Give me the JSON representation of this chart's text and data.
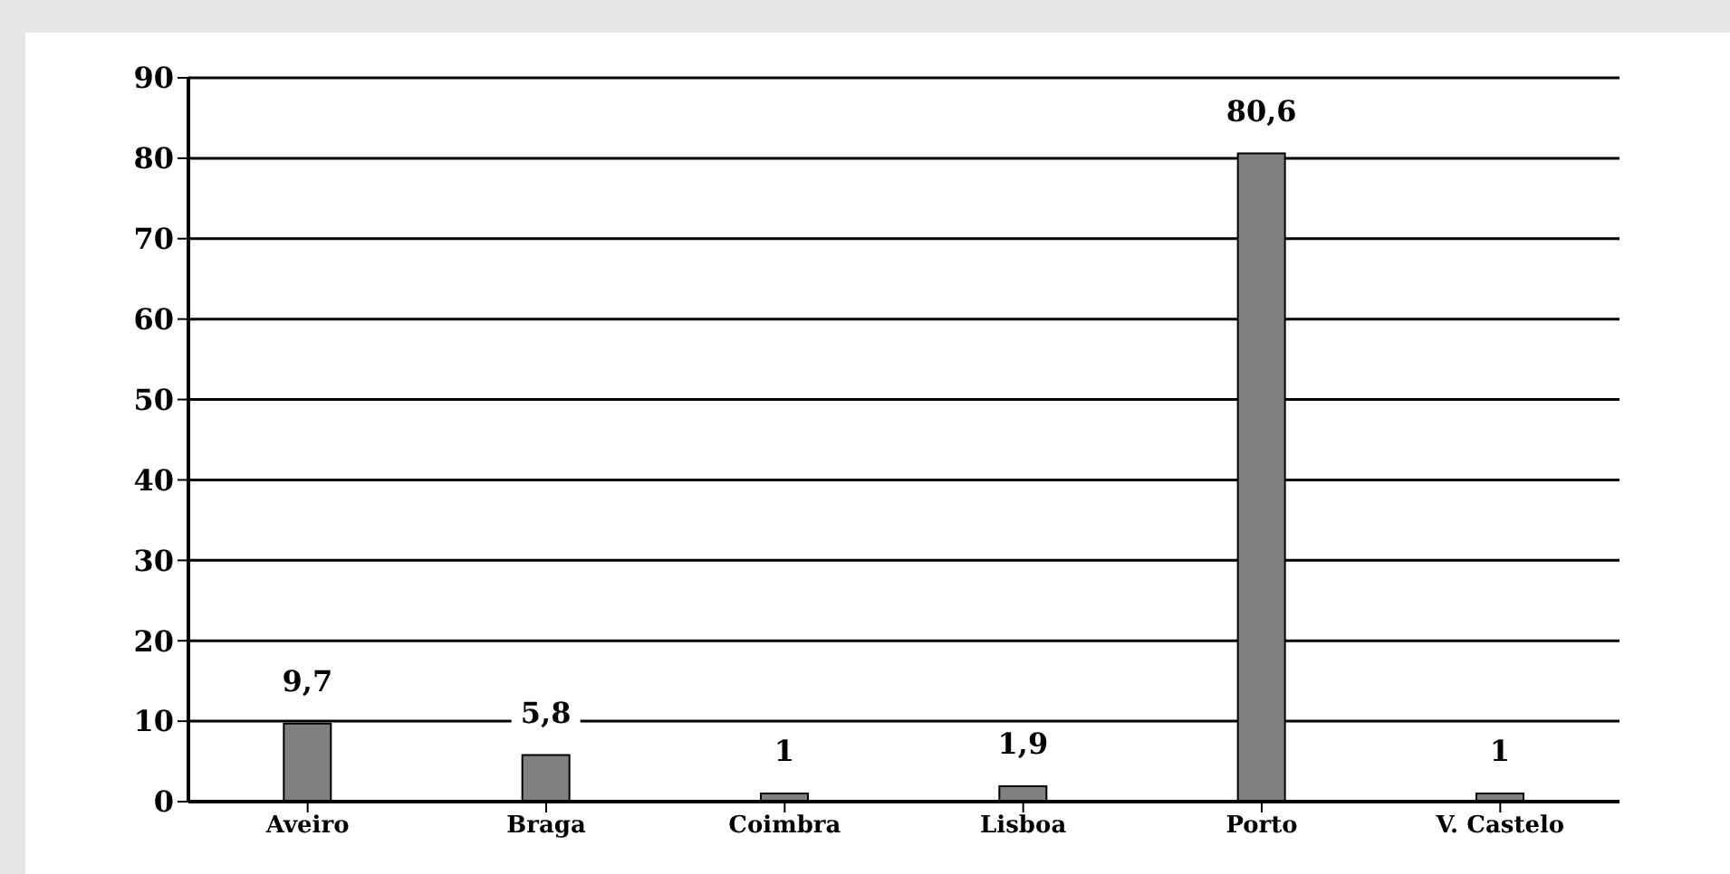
{
  "chart_data": {
    "type": "bar",
    "categories": [
      "Aveiro",
      "Braga",
      "Coimbra",
      "Lisboa",
      "Porto",
      "V. Castelo"
    ],
    "values": [
      9.7,
      5.8,
      1,
      1.9,
      80.6,
      1
    ],
    "value_labels": [
      "9,7",
      "5,8",
      "1",
      "1,9",
      "80,6",
      "1"
    ],
    "color": "#808080",
    "ylim": [
      0,
      90
    ],
    "yticks": [
      0,
      10,
      20,
      30,
      40,
      50,
      60,
      70,
      80,
      90
    ],
    "grid": "y"
  }
}
